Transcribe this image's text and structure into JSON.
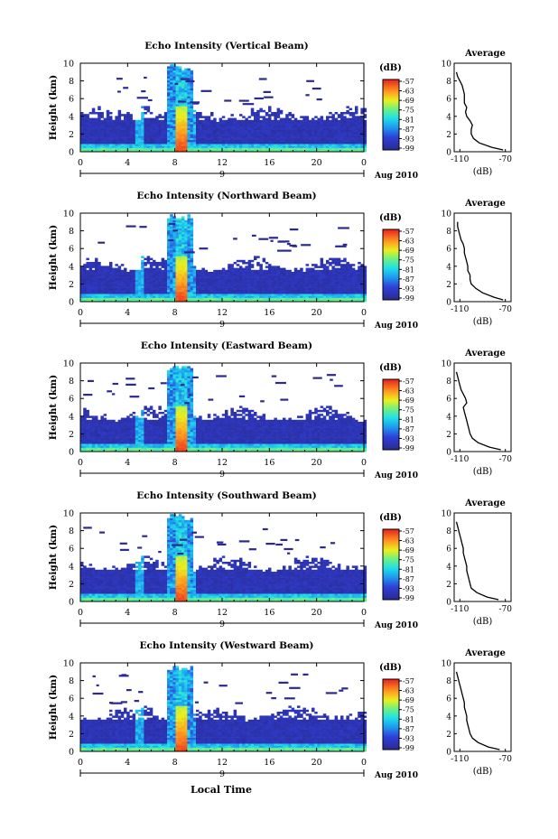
{
  "figure": {
    "x_axis_title": "Local Time",
    "date_label": "Aug 2010"
  },
  "chart_data": [
    {
      "type": "heatmap",
      "title": "Echo Intensity (Vertical Beam)",
      "ylabel": "Height (km)",
      "ylim": [
        0,
        10
      ],
      "xlim": [
        0,
        24
      ],
      "x_ticks": [
        "0",
        "4",
        "8",
        "12",
        "16",
        "20",
        "0"
      ],
      "y_ticks": [
        "0",
        "2",
        "4",
        "6",
        "8",
        "10"
      ],
      "day_marker": "9",
      "colorbar": {
        "label": "(dB)",
        "ticks": [
          "-57",
          "-63",
          "-69",
          "-75",
          "-81",
          "-87",
          "-93",
          "-99"
        ]
      },
      "average": {
        "title": "Average",
        "xlabel": "(dB)",
        "x_ticks": [
          "-110",
          "-70"
        ],
        "xlim": [
          -115,
          -65
        ],
        "profile": {
          "height": [
            0.2,
            0.5,
            1,
            1.5,
            2,
            2.5,
            3,
            3.5,
            4,
            4.5,
            5,
            5.5,
            6,
            6.5,
            7,
            7.5,
            8,
            8.5,
            9
          ],
          "db": [
            -72,
            -82,
            -93,
            -98,
            -100,
            -100,
            -99,
            -101,
            -104,
            -105,
            -104,
            -106,
            -106,
            -106,
            -107,
            -108,
            -110,
            -112,
            -113
          ]
        }
      }
    },
    {
      "type": "heatmap",
      "title": "Echo Intensity (Northward Beam)",
      "ylabel": "Height (km)",
      "ylim": [
        0,
        10
      ],
      "xlim": [
        0,
        24
      ],
      "x_ticks": [
        "0",
        "4",
        "8",
        "12",
        "16",
        "20",
        "0"
      ],
      "y_ticks": [
        "0",
        "2",
        "4",
        "6",
        "8",
        "10"
      ],
      "day_marker": "9",
      "colorbar": {
        "label": "(dB)",
        "ticks": [
          "-57",
          "-63",
          "-69",
          "-75",
          "-81",
          "-87",
          "-93",
          "-99"
        ]
      },
      "average": {
        "title": "Average",
        "xlabel": "(dB)",
        "x_ticks": [
          "-110",
          "-70"
        ],
        "xlim": [
          -115,
          -65
        ],
        "profile": {
          "height": [
            0.2,
            0.5,
            1,
            1.5,
            2,
            2.5,
            3,
            3.5,
            4,
            4.5,
            5,
            5.5,
            6,
            6.5,
            7,
            7.5,
            8,
            8.5,
            9
          ],
          "db": [
            -72,
            -80,
            -90,
            -96,
            -100,
            -101,
            -101,
            -103,
            -103,
            -104,
            -105,
            -106,
            -106,
            -107,
            -109,
            -110,
            -111,
            -112,
            -112
          ]
        }
      }
    },
    {
      "type": "heatmap",
      "title": "Echo Intensity (Eastward Beam)",
      "ylabel": "Height (km)",
      "ylim": [
        0,
        10
      ],
      "xlim": [
        0,
        24
      ],
      "x_ticks": [
        "0",
        "4",
        "8",
        "12",
        "16",
        "20",
        "0"
      ],
      "y_ticks": [
        "0",
        "2",
        "4",
        "6",
        "8",
        "10"
      ],
      "day_marker": "9",
      "colorbar": {
        "label": "(dB)",
        "ticks": [
          "-57",
          "-63",
          "-69",
          "-75",
          "-81",
          "-87",
          "-93",
          "-99"
        ]
      },
      "average": {
        "title": "Average",
        "xlabel": "(dB)",
        "x_ticks": [
          "-110",
          "-70"
        ],
        "xlim": [
          -115,
          -65
        ],
        "profile": {
          "height": [
            0.2,
            0.5,
            1,
            1.5,
            2,
            2.5,
            3,
            3.5,
            4,
            4.5,
            5,
            5.5,
            6,
            6.5,
            7,
            7.5,
            8,
            8.5,
            9
          ],
          "db": [
            -74,
            -84,
            -94,
            -99,
            -101,
            -102,
            -103,
            -104,
            -105,
            -106,
            -107,
            -104,
            -105,
            -107,
            -109,
            -110,
            -111,
            -112,
            -113
          ]
        }
      }
    },
    {
      "type": "heatmap",
      "title": "Echo Intensity (Southward Beam)",
      "ylabel": "Height (km)",
      "ylim": [
        0,
        10
      ],
      "xlim": [
        0,
        24
      ],
      "x_ticks": [
        "0",
        "4",
        "8",
        "12",
        "16",
        "20",
        "0"
      ],
      "y_ticks": [
        "0",
        "2",
        "4",
        "6",
        "8",
        "10"
      ],
      "day_marker": "9",
      "colorbar": {
        "label": "(dB)",
        "ticks": [
          "-57",
          "-63",
          "-69",
          "-75",
          "-81",
          "-87",
          "-93",
          "-99"
        ]
      },
      "average": {
        "title": "Average",
        "xlabel": "(dB)",
        "x_ticks": [
          "-110",
          "-70"
        ],
        "xlim": [
          -115,
          -65
        ],
        "profile": {
          "height": [
            0.2,
            0.5,
            1,
            1.5,
            2,
            2.5,
            3,
            3.5,
            4,
            4.5,
            5,
            5.5,
            6,
            6.5,
            7,
            7.5,
            8,
            8.5,
            9
          ],
          "db": [
            -76,
            -86,
            -95,
            -100,
            -101,
            -102,
            -103,
            -104,
            -104,
            -105,
            -106,
            -107,
            -107,
            -108,
            -109,
            -110,
            -111,
            -112,
            -113
          ]
        }
      }
    },
    {
      "type": "heatmap",
      "title": "Echo Intensity (Westward Beam)",
      "ylabel": "Height (km)",
      "ylim": [
        0,
        10
      ],
      "xlim": [
        0,
        24
      ],
      "x_ticks": [
        "0",
        "4",
        "8",
        "12",
        "16",
        "20",
        "0"
      ],
      "y_ticks": [
        "0",
        "2",
        "4",
        "6",
        "8",
        "10"
      ],
      "day_marker": "9",
      "colorbar": {
        "label": "(dB)",
        "ticks": [
          "-57",
          "-63",
          "-69",
          "-75",
          "-81",
          "-87",
          "-93",
          "-99"
        ]
      },
      "average": {
        "title": "Average",
        "xlabel": "(dB)",
        "x_ticks": [
          "-110",
          "-70"
        ],
        "xlim": [
          -115,
          -65
        ],
        "profile": {
          "height": [
            0.2,
            0.5,
            1,
            1.5,
            2,
            2.5,
            3,
            3.5,
            4,
            4.5,
            5,
            5.5,
            6,
            6.5,
            7,
            7.5,
            8,
            8.5,
            9
          ],
          "db": [
            -75,
            -85,
            -94,
            -99,
            -101,
            -102,
            -103,
            -104,
            -104,
            -105,
            -106,
            -106,
            -107,
            -108,
            -109,
            -110,
            -111,
            -112,
            -113
          ]
        }
      }
    }
  ]
}
